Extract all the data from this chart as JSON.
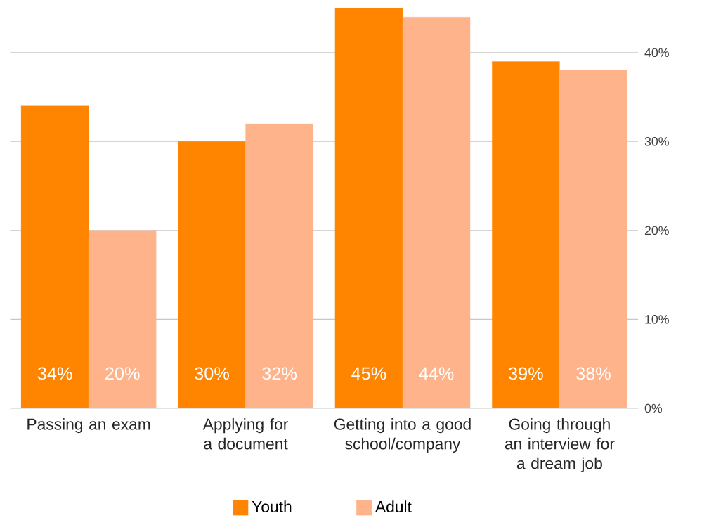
{
  "chart_data": {
    "type": "bar",
    "categories": [
      "Passing an exam",
      "Applying for a document",
      "Getting into a good school/company",
      "Going through an interview for a dream job"
    ],
    "series": [
      {
        "name": "Youth",
        "color": "#ff8500",
        "values": [
          34,
          30,
          45,
          39
        ],
        "value_labels": [
          "34%",
          "30%",
          "45%",
          "39%"
        ]
      },
      {
        "name": "Adult",
        "color": "#ffb38a",
        "values": [
          20,
          32,
          44,
          38
        ],
        "value_labels": [
          "20%",
          "32%",
          "44%",
          "38%"
        ]
      }
    ],
    "ylim": [
      0,
      45
    ],
    "yticks": [
      {
        "value": 0,
        "label": "0%"
      },
      {
        "value": 10,
        "label": "10%"
      },
      {
        "value": 20,
        "label": "20%"
      },
      {
        "value": 30,
        "label": "30%"
      },
      {
        "value": 40,
        "label": "40%"
      }
    ],
    "grid": "y",
    "legend": "bottom"
  }
}
